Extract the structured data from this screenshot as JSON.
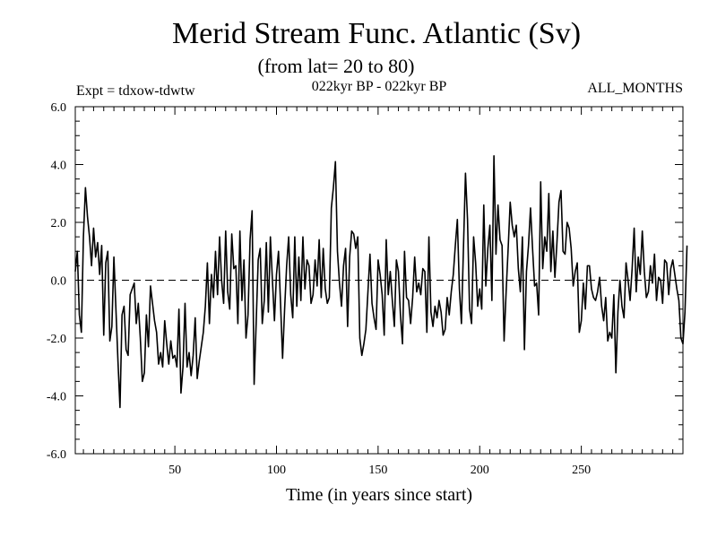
{
  "chart_data": {
    "type": "line",
    "title": "Merid Stream Func. Atlantic (Sv)",
    "subtitle": "(from lat= 20 to 80)",
    "header_left": "Expt = tdxow-tdwtw",
    "header_center": "022kyr BP - 022kyr BP",
    "header_right": "ALL_MONTHS",
    "xlabel": "Time (in years since start)",
    "ylabel": "",
    "xlim": [
      1,
      300
    ],
    "ylim": [
      -6,
      6
    ],
    "x_ticks": [
      50,
      100,
      150,
      200,
      250
    ],
    "x_tick_labels": [
      "50",
      "100",
      "150",
      "200",
      "250"
    ],
    "y_ticks": [
      -6,
      -4,
      -2,
      0,
      2,
      4,
      6
    ],
    "y_tick_labels": [
      "-6.0",
      "-4.0",
      "-2.0",
      "0.0",
      "2.0",
      "4.0",
      "6.0"
    ],
    "zero_line": "dashed",
    "series": [
      {
        "name": "Merid Stream Func. Atlantic",
        "x_start": 1,
        "x_step": 1,
        "values": [
          0.3,
          1.0,
          -1.2,
          -1.8,
          1.5,
          3.2,
          2.2,
          1.5,
          0.5,
          1.8,
          0.8,
          1.3,
          0.2,
          1.2,
          -1.9,
          0.6,
          1.0,
          -2.1,
          -1.6,
          0.8,
          -1.0,
          -2.8,
          -4.4,
          -1.2,
          -0.9,
          -2.4,
          -2.6,
          -0.5,
          -0.3,
          -0.1,
          -1.5,
          -0.8,
          -2.0,
          -3.5,
          -3.2,
          -1.2,
          -2.3,
          -0.2,
          -0.8,
          -1.4,
          -1.8,
          -2.9,
          -2.5,
          -3.0,
          -1.4,
          -2.2,
          -2.9,
          -2.1,
          -2.7,
          -2.6,
          -3.0,
          -1.0,
          -3.9,
          -3.0,
          -0.8,
          -3.0,
          -2.5,
          -3.3,
          -2.6,
          -1.3,
          -3.4,
          -2.8,
          -2.3,
          -1.8,
          -0.9,
          0.6,
          -1.5,
          0.2,
          -0.6,
          1.0,
          -0.5,
          1.5,
          0.0,
          -0.8,
          1.7,
          -0.4,
          -1.0,
          1.6,
          0.4,
          0.5,
          -1.5,
          1.7,
          -0.7,
          0.7,
          -2.0,
          -1.2,
          1.4,
          2.4,
          -3.6,
          -1.5,
          0.7,
          1.1,
          -1.5,
          -0.7,
          1.3,
          -1.1,
          1.5,
          0.0,
          -1.4,
          0.2,
          1.0,
          -0.8,
          -2.7,
          -1.0,
          0.5,
          1.5,
          -0.5,
          -1.3,
          1.5,
          -0.9,
          0.8,
          -0.7,
          1.5,
          -0.3,
          0.7,
          0.5,
          -0.8,
          -0.5,
          0.7,
          -0.2,
          1.4,
          -0.6,
          1.1,
          -0.3,
          -0.8,
          -0.6,
          2.5,
          3.2,
          4.1,
          1.0,
          -0.1,
          -0.9,
          0.5,
          1.1,
          -1.6,
          0.8,
          1.7,
          1.6,
          1.1,
          1.5,
          -2.0,
          -2.6,
          -2.2,
          -1.7,
          -0.4,
          0.9,
          -0.8,
          -1.3,
          -1.7,
          0.7,
          0.2,
          -0.5,
          -1.9,
          1.4,
          -0.5,
          0.3,
          -0.7,
          -1.6,
          0.7,
          0.3,
          -1.2,
          -2.2,
          1.0,
          -0.6,
          -0.7,
          -1.5,
          -0.6,
          0.8,
          -0.4,
          -0.1,
          -0.5,
          0.4,
          0.3,
          -1.8,
          1.5,
          -1.1,
          -1.6,
          -0.9,
          -1.3,
          -0.7,
          -1.1,
          -1.9,
          -1.7,
          -0.6,
          -1.2,
          -0.4,
          0.2,
          1.2,
          2.1,
          -0.3,
          -1.5,
          1.1,
          3.7,
          2.1,
          -1.0,
          -1.5,
          1.5,
          0.6,
          -0.9,
          -0.3,
          -1.0,
          2.6,
          -0.2,
          1.1,
          1.9,
          -0.7,
          4.3,
          0.9,
          2.6,
          1.4,
          1.2,
          -2.1,
          -0.4,
          1.1,
          2.7,
          1.9,
          1.5,
          1.9,
          0.4,
          -0.4,
          1.5,
          -2.4,
          0.3,
          1.2,
          2.5,
          1.1,
          -0.2,
          -0.1,
          -1.2,
          3.4,
          0.4,
          1.5,
          1.0,
          3.0,
          0.3,
          1.7,
          0.1,
          1.3,
          2.7,
          3.1,
          1.0,
          0.9,
          2.0,
          1.8,
          1.1,
          -0.2,
          0.3,
          0.6,
          -1.8,
          -1.4,
          -0.1,
          -1.0,
          0.5,
          0.5,
          -0.3,
          -0.6,
          -0.7,
          -0.4,
          0.1,
          -0.9,
          -1.4,
          -0.6,
          -2.1,
          -1.8,
          -2.0,
          -0.5,
          -3.2,
          -1.1,
          0.0,
          -0.9,
          -1.3,
          0.6,
          0.0,
          -0.7,
          0.4,
          1.8,
          -0.4,
          0.8,
          0.2,
          1.7,
          0.3,
          -0.6,
          -0.4,
          0.5,
          -0.1,
          0.9,
          -0.7,
          0.1,
          0.0,
          -0.8,
          0.7,
          0.6,
          -0.5,
          0.4,
          0.7,
          0.2,
          -0.3,
          -0.7,
          -2.0,
          -2.2,
          -1.1,
          1.2
        ]
      }
    ]
  }
}
